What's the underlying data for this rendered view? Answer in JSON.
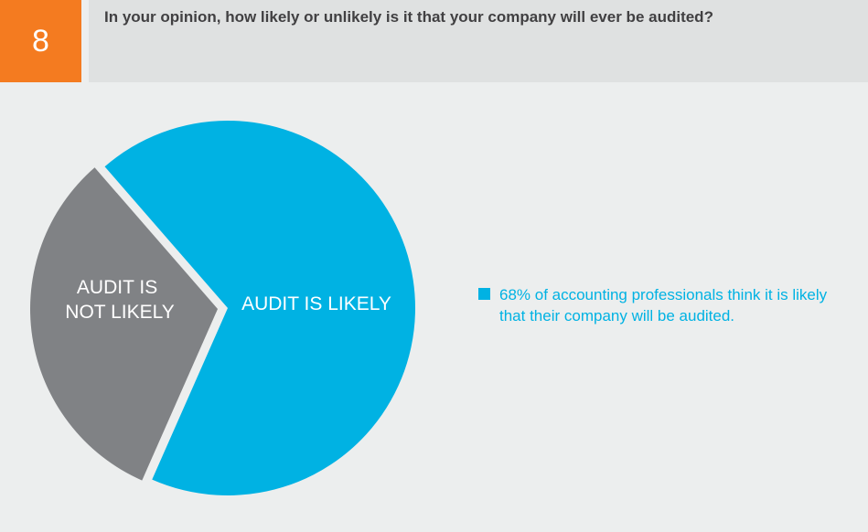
{
  "question": {
    "number": "8",
    "text": "In your opinion, how likely or unlikely is it that your company will ever be audited?"
  },
  "colors": {
    "accent": "#f47b20",
    "likely": "#00b2e3",
    "not_likely": "#808285"
  },
  "chart_data": {
    "type": "pie",
    "slices": [
      {
        "label": "AUDIT IS LIKELY",
        "value": 68,
        "color": "#00b2e3"
      },
      {
        "label": "AUDIT IS NOT LIKELY",
        "label_lines": [
          "AUDIT IS",
          "NOT LIKELY"
        ],
        "value": 32,
        "color": "#808285"
      }
    ],
    "legend": {
      "placement": "right",
      "text": "68% of accounting professionals think it is likely that their company will be audited."
    }
  }
}
